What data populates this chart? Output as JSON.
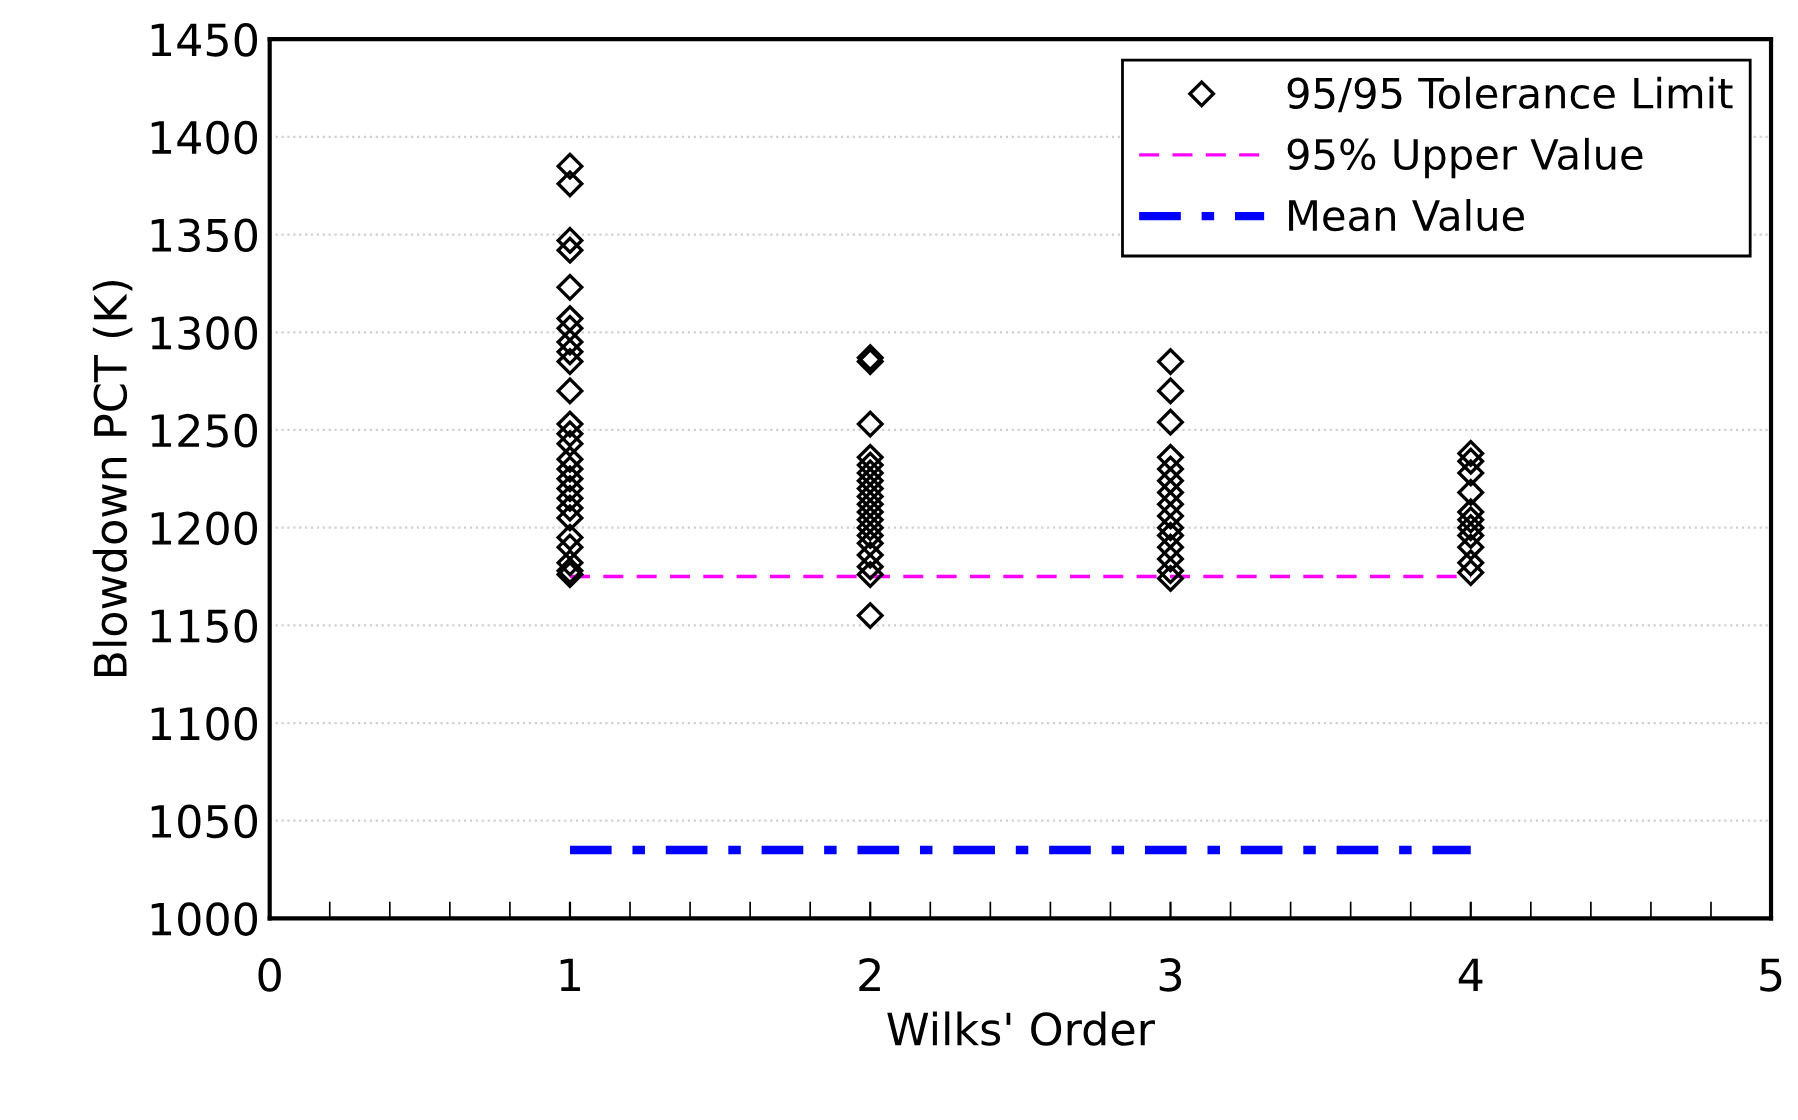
{
  "chart_data": {
    "type": "scatter",
    "xlabel": "Wilks' Order",
    "ylabel": "Blowdown PCT (K)",
    "xlim": [
      0,
      5
    ],
    "xticks": [
      0,
      1,
      2,
      3,
      4,
      5
    ],
    "ylim": [
      1000,
      1450
    ],
    "yticks": [
      1000,
      1050,
      1100,
      1150,
      1200,
      1250,
      1300,
      1350,
      1400,
      1450
    ],
    "grid": "y",
    "legend": "top right",
    "series": [
      {
        "name": "95/95 Tolerance Limit",
        "color": "#000000",
        "marker": "diamond",
        "x": [
          1,
          1,
          1,
          1,
          1,
          1,
          1,
          1,
          1,
          1,
          1,
          1,
          1,
          1,
          1,
          1,
          1,
          1,
          1,
          1,
          1,
          1,
          1,
          1,
          1,
          1,
          2,
          2,
          2,
          2,
          2,
          2,
          2,
          2,
          2,
          2,
          2,
          2,
          2,
          2,
          2,
          2,
          2,
          2,
          2,
          3,
          3,
          3,
          3,
          3,
          3,
          3,
          3,
          3,
          3,
          3,
          3,
          3,
          3,
          3,
          4,
          4,
          4,
          4,
          4,
          4,
          4,
          4,
          4,
          4,
          4
        ],
        "values": [
          1385,
          1376,
          1347,
          1342,
          1323,
          1307,
          1302,
          1295,
          1290,
          1285,
          1270,
          1253,
          1248,
          1243,
          1235,
          1230,
          1225,
          1220,
          1215,
          1210,
          1205,
          1195,
          1190,
          1182,
          1178,
          1176,
          1287,
          1285,
          1253,
          1236,
          1232,
          1228,
          1224,
          1220,
          1216,
          1212,
          1208,
          1204,
          1200,
          1196,
          1192,
          1186,
          1180,
          1176,
          1155,
          1285,
          1270,
          1254,
          1236,
          1230,
          1224,
          1218,
          1212,
          1206,
          1200,
          1196,
          1190,
          1184,
          1178,
          1174,
          1238,
          1234,
          1228,
          1218,
          1208,
          1204,
          1200,
          1196,
          1190,
          1182,
          1177
        ]
      },
      {
        "name": "95% Upper Value",
        "type": "line",
        "color": "#ff00ff",
        "line_style": "dashed",
        "x": [
          1,
          4
        ],
        "values": [
          1175,
          1175
        ]
      },
      {
        "name": "Mean Value",
        "type": "line",
        "color": "#0000ff",
        "line_style": "dashdot",
        "x": [
          1,
          4
        ],
        "values": [
          1035,
          1035
        ]
      }
    ]
  }
}
